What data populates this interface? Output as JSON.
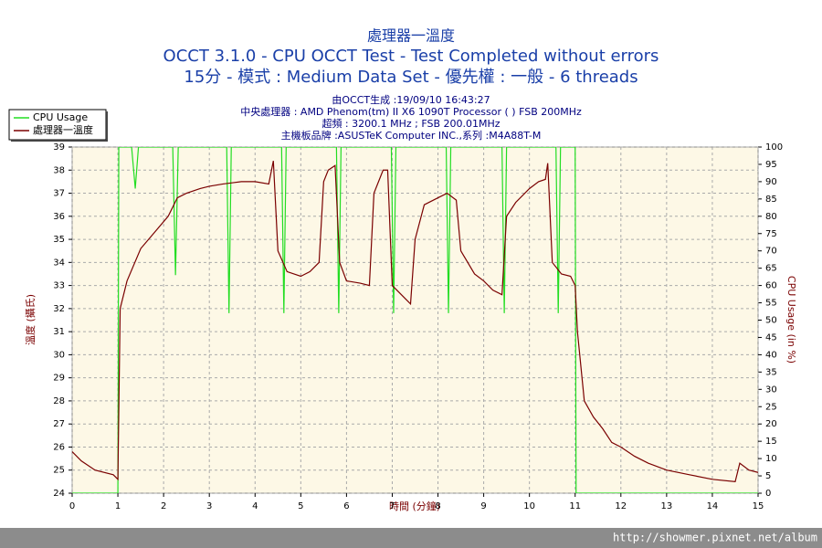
{
  "chart_data": {
    "type": "line",
    "title": "處理器一溫度",
    "subtitles": [
      "OCCT 3.1.0 - CPU OCCT Test - Test Completed without errors",
      "15分 - 模式 : Medium Data Set - 優先權 : 一般 - 6 threads"
    ],
    "info": [
      "由OCCT生成 :19/09/10 16:43:27",
      "中央處理器 : AMD Phenom(tm) II X6 1090T Processor (  ) FSB 200MHz",
      "超頻 : 3200.1 MHz ; FSB 200.01MHz",
      "主機板品牌 :ASUSTeK Computer INC.,系列 :M4A88T-M"
    ],
    "xlabel": "時間 (分鐘)",
    "ylabel": "溫度 (攝氏)",
    "y2label": "CPU Usage (in %)",
    "xlim": [
      0,
      15
    ],
    "xticks": [
      0,
      1,
      2,
      3,
      4,
      5,
      6,
      7,
      8,
      9,
      10,
      11,
      12,
      13,
      14,
      15
    ],
    "ylim": [
      24,
      39
    ],
    "yticks": [
      24,
      25,
      26,
      27,
      28,
      29,
      30,
      31,
      32,
      33,
      34,
      35,
      36,
      37,
      38,
      39
    ],
    "y2lim": [
      0,
      100
    ],
    "y2ticks": [
      0,
      5,
      10,
      15,
      20,
      25,
      30,
      35,
      40,
      45,
      50,
      55,
      60,
      65,
      70,
      75,
      80,
      85,
      90,
      95,
      100
    ],
    "grid": true,
    "legend": "upper left",
    "watermark": "http://showmer.pixnet.net/album",
    "series": [
      {
        "name": "CPU Usage",
        "color": "#22dd22",
        "axis": "y2",
        "x": [
          0,
          1,
          1.02,
          1.3,
          1.38,
          1.45,
          2.2,
          2.26,
          2.32,
          3.38,
          3.43,
          3.48,
          4.58,
          4.63,
          4.68,
          5.78,
          5.83,
          5.88,
          6.98,
          7.03,
          7.08,
          8.18,
          8.23,
          8.28,
          9.4,
          9.45,
          9.5,
          10.58,
          10.63,
          10.68,
          11.0,
          11.02,
          15
        ],
        "values": [
          0,
          0,
          100,
          100,
          88,
          100,
          100,
          63,
          100,
          100,
          52,
          100,
          100,
          52,
          100,
          100,
          52,
          100,
          100,
          52,
          100,
          100,
          52,
          100,
          100,
          52,
          100,
          100,
          52,
          100,
          100,
          0,
          0
        ]
      },
      {
        "name": "處理器一溫度",
        "color": "#7a0000",
        "x": [
          0,
          0.2,
          0.5,
          0.9,
          1.0,
          1.05,
          1.2,
          1.5,
          1.8,
          2.1,
          2.3,
          2.5,
          2.8,
          3.0,
          3.3,
          3.7,
          4.0,
          4.3,
          4.4,
          4.5,
          4.7,
          5.0,
          5.2,
          5.4,
          5.5,
          5.6,
          5.75,
          5.85,
          6.0,
          6.3,
          6.5,
          6.6,
          6.8,
          6.9,
          7.0,
          7.2,
          7.4,
          7.5,
          7.7,
          8.0,
          8.2,
          8.4,
          8.5,
          8.8,
          9.0,
          9.2,
          9.4,
          9.5,
          9.7,
          10.0,
          10.2,
          10.35,
          10.4,
          10.5,
          10.7,
          10.9,
          11.0,
          11.05,
          11.2,
          11.4,
          11.6,
          11.8,
          12.0,
          12.3,
          12.6,
          13.0,
          13.5,
          14.0,
          14.5,
          14.6,
          14.8,
          15
        ],
        "values": [
          25.8,
          25.4,
          25.0,
          24.8,
          24.6,
          32,
          33.2,
          34.6,
          35.3,
          36,
          36.8,
          37,
          37.2,
          37.3,
          37.4,
          37.5,
          37.5,
          37.4,
          38.4,
          34.5,
          33.6,
          33.4,
          33.6,
          34,
          37.5,
          38,
          38.2,
          34,
          33.2,
          33.1,
          33,
          37,
          38,
          38,
          33,
          32.6,
          32.2,
          35,
          36.5,
          36.8,
          37,
          36.7,
          34.5,
          33.5,
          33.2,
          32.8,
          32.6,
          36,
          36.6,
          37.2,
          37.5,
          37.6,
          38.3,
          34,
          33.5,
          33.4,
          33,
          31,
          28,
          27.3,
          26.8,
          26.2,
          26,
          25.6,
          25.3,
          25,
          24.8,
          24.6,
          24.5,
          25.3,
          25,
          24.9
        ]
      }
    ]
  }
}
